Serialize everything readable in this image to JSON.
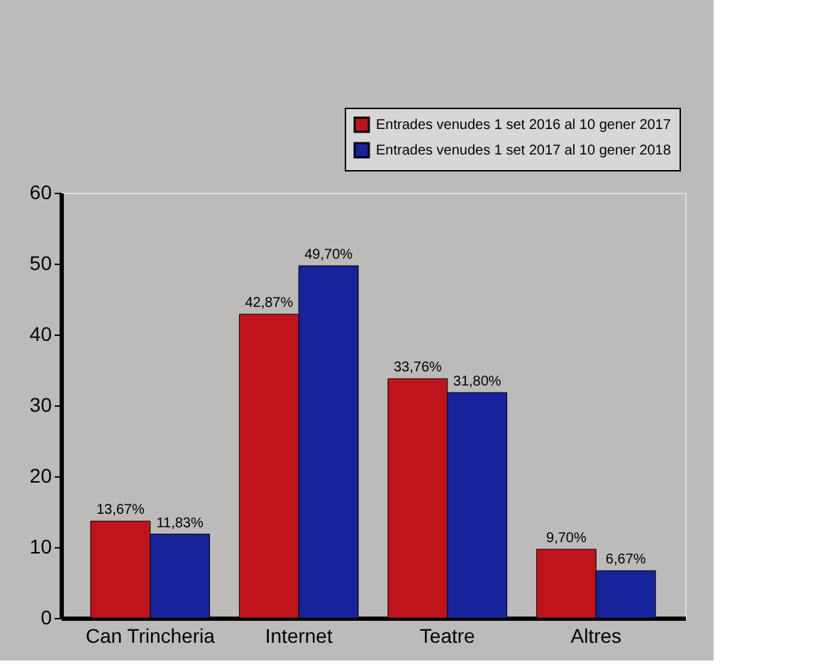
{
  "chart_data": {
    "type": "bar",
    "categories": [
      "Can Trincheria",
      "Internet",
      "Teatre",
      "Altres"
    ],
    "series": [
      {
        "name": "Entrades venudes 1 set 2016 al 10 gener 2017",
        "color": "#c0141c",
        "values": [
          13.67,
          42.87,
          33.76,
          9.7
        ],
        "value_labels": [
          "13,67%",
          "42,87%",
          "33,76%",
          "9,70%"
        ]
      },
      {
        "name": "Entrades venudes 1 set 2017 al 10 gener 2018",
        "color": "#17239a",
        "values": [
          11.83,
          49.7,
          31.8,
          6.67
        ],
        "value_labels": [
          "11,83%",
          "49,70%",
          "31,80%",
          "6,67%"
        ]
      }
    ],
    "ylim": [
      0,
      60
    ],
    "yticks": [
      0,
      10,
      20,
      30,
      40,
      50,
      60
    ],
    "grid": false,
    "legend": "top right"
  }
}
